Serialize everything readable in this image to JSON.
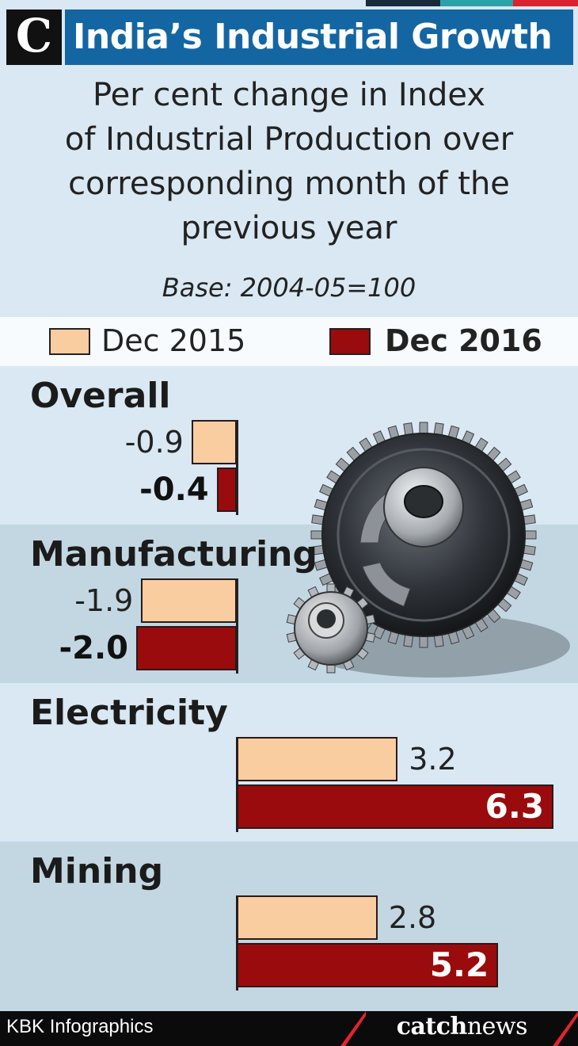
{
  "header": {
    "logo_letter": "C",
    "title": "India’s Industrial Growth"
  },
  "subtitle_lines": [
    "Per cent change in Index",
    "of Industrial Production over",
    "corresponding month of the",
    "previous year"
  ],
  "base_note": "Base: 2004-05=100",
  "colors": {
    "dec2015": "#f9cda0",
    "dec2016": "#9a0b0d",
    "title_bar": "#1466a3",
    "band_light": "#d9e8f2",
    "band_dark": "#c3d7e2"
  },
  "chart_data": {
    "type": "bar",
    "orientation": "horizontal",
    "categories": [
      "Overall",
      "Manufacturing",
      "Electricity",
      "Mining"
    ],
    "series": [
      {
        "name": "Dec 2015",
        "values": [
          -0.9,
          -1.9,
          3.2,
          2.8
        ],
        "labels": [
          "-0.9",
          "-1.9",
          "3.2",
          "2.8"
        ]
      },
      {
        "name": "Dec 2016",
        "values": [
          -0.4,
          -2.0,
          6.3,
          5.2
        ],
        "labels": [
          "-0.4",
          "-2.0",
          "6.3",
          "5.2"
        ]
      }
    ],
    "title": "India’s Industrial Growth",
    "grid": false,
    "legend_position": "top"
  },
  "footer": {
    "credit": "KBK Infographics",
    "brand_bold": "catch",
    "brand_light": "news"
  }
}
